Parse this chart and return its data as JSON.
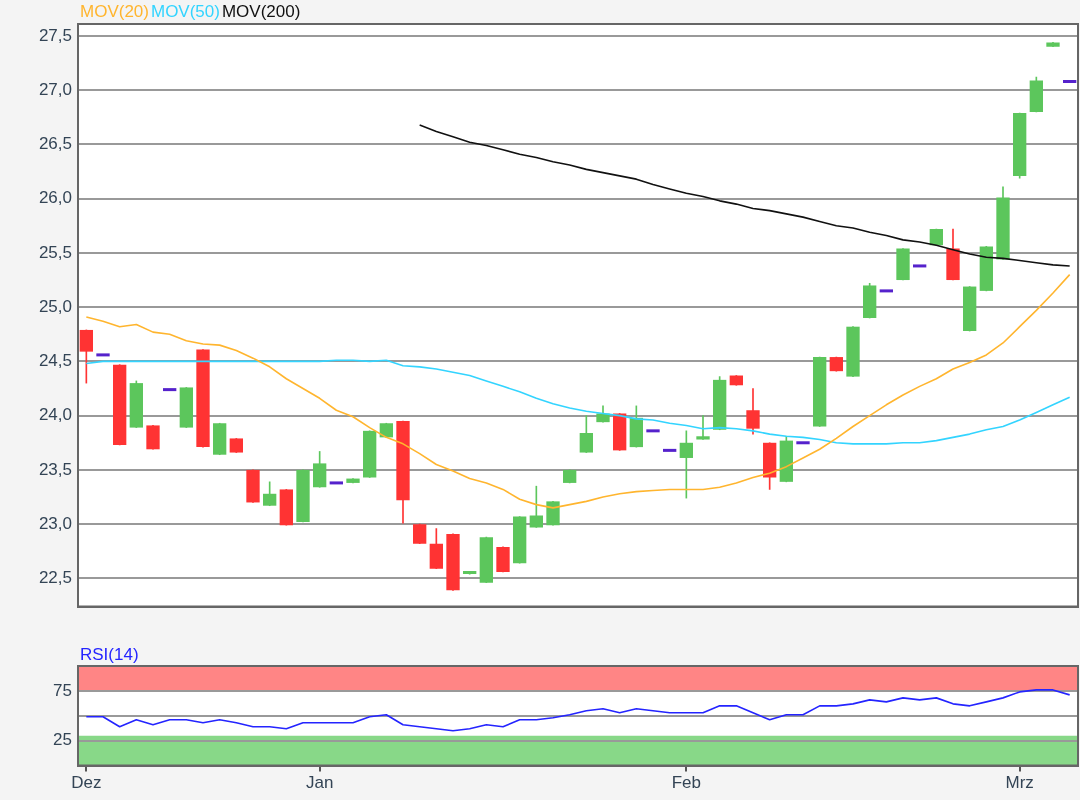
{
  "chart_data": [
    {
      "type": "candlestick",
      "categories": [
        null,
        null,
        null,
        null,
        null,
        null,
        null,
        null,
        null,
        null,
        null,
        null,
        null,
        null,
        null,
        null,
        null,
        null,
        null,
        null,
        null,
        null,
        null,
        null,
        null,
        null,
        null,
        null,
        null,
        null,
        null,
        null,
        null,
        null,
        null,
        null,
        null,
        null,
        null,
        null,
        null,
        null,
        null,
        null,
        null,
        null,
        null,
        null,
        null,
        null,
        null,
        null,
        null,
        null,
        null,
        null,
        null,
        null,
        null,
        null
      ],
      "ylim": [
        22.24,
        27.61
      ],
      "yticks": [
        {
          "value": 22.5,
          "label": "22,5"
        },
        {
          "value": 23,
          "label": "23,0"
        },
        {
          "value": 23.5,
          "label": "23,5"
        },
        {
          "value": 24,
          "label": "24,0"
        },
        {
          "value": 24.5,
          "label": "24,5"
        },
        {
          "value": 25,
          "label": "25,0"
        },
        {
          "value": 25.5,
          "label": "25,5"
        },
        {
          "value": 26,
          "label": "26,0"
        },
        {
          "value": 26.5,
          "label": "26,5"
        },
        {
          "value": 27,
          "label": "27,0"
        },
        {
          "value": 27.5,
          "label": "27,5"
        }
      ],
      "grid": "y",
      "legend": "top left",
      "marker": "none",
      "series": [
        {
          "type": "candlestick",
          "ohlc": [
            [
              24.79,
              24.79,
              24.3,
              24.59
            ],
            [
              24.56,
              24.56,
              24.56,
              24.56
            ],
            [
              24.47,
              24.47,
              23.73,
              23.73
            ],
            [
              23.89,
              24.32,
              23.89,
              24.3
            ],
            [
              23.91,
              23.91,
              23.69,
              23.69
            ],
            [
              24.24,
              24.24,
              24.24,
              24.24
            ],
            [
              23.89,
              24.26,
              23.89,
              24.26
            ],
            [
              24.61,
              24.61,
              23.71,
              23.71
            ],
            [
              23.64,
              23.93,
              23.64,
              23.93
            ],
            [
              23.79,
              23.79,
              23.66,
              23.66
            ],
            [
              23.5,
              23.5,
              23.2,
              23.2
            ],
            [
              23.17,
              23.39,
              23.17,
              23.28
            ],
            [
              23.32,
              23.32,
              22.99,
              22.99
            ],
            [
              23.02,
              23.5,
              23.02,
              23.5
            ],
            [
              23.34,
              23.67,
              23.34,
              23.56
            ],
            [
              23.38,
              23.38,
              23.38,
              23.38
            ],
            [
              23.38,
              23.42,
              23.38,
              23.42
            ],
            [
              23.43,
              23.86,
              23.43,
              23.86
            ],
            [
              23.8,
              23.93,
              23.8,
              23.93
            ],
            [
              23.95,
              23.95,
              23.01,
              23.22
            ],
            [
              23.0,
              23.0,
              22.82,
              22.82
            ],
            [
              22.82,
              22.96,
              22.59,
              22.59
            ],
            [
              22.91,
              22.91,
              22.39,
              22.39
            ],
            [
              22.54,
              22.56,
              22.54,
              22.56
            ],
            [
              22.46,
              22.88,
              22.46,
              22.88
            ],
            [
              22.79,
              22.79,
              22.56,
              22.56
            ],
            [
              22.64,
              23.07,
              22.64,
              23.07
            ],
            [
              22.97,
              23.35,
              22.97,
              23.08
            ],
            [
              22.99,
              23.21,
              22.99,
              23.21
            ],
            [
              23.38,
              23.5,
              23.38,
              23.5
            ],
            [
              23.66,
              24.0,
              23.66,
              23.84
            ],
            [
              23.94,
              24.09,
              23.94,
              24.02
            ],
            [
              24.02,
              24.02,
              23.68,
              23.68
            ],
            [
              23.71,
              24.09,
              23.71,
              23.98
            ],
            [
              23.86,
              23.86,
              23.86,
              23.86
            ],
            [
              23.68,
              23.68,
              23.68,
              23.68
            ],
            [
              23.61,
              23.86,
              23.24,
              23.75
            ],
            [
              23.78,
              24.0,
              23.78,
              23.81
            ],
            [
              23.87,
              24.36,
              23.87,
              24.33
            ],
            [
              24.37,
              24.37,
              24.28,
              24.28
            ],
            [
              24.05,
              24.25,
              23.83,
              23.88
            ],
            [
              23.75,
              23.75,
              23.32,
              23.43
            ],
            [
              23.39,
              23.81,
              23.39,
              23.77
            ],
            [
              23.75,
              23.75,
              23.75,
              23.75
            ],
            [
              23.9,
              24.54,
              23.9,
              24.54
            ],
            [
              24.54,
              24.54,
              24.41,
              24.41
            ],
            [
              24.36,
              24.82,
              24.36,
              24.82
            ],
            [
              24.9,
              25.22,
              24.9,
              25.2
            ],
            [
              25.15,
              25.15,
              25.15,
              25.15
            ],
            [
              25.25,
              25.54,
              25.25,
              25.54
            ],
            [
              25.38,
              25.38,
              25.38,
              25.38
            ],
            [
              25.57,
              25.72,
              25.57,
              25.72
            ],
            [
              25.54,
              25.72,
              25.25,
              25.25
            ],
            [
              24.78,
              25.19,
              24.78,
              25.19
            ],
            [
              25.15,
              25.56,
              25.15,
              25.56
            ],
            [
              25.44,
              26.11,
              25.44,
              26.01
            ],
            [
              26.21,
              26.79,
              26.19,
              26.79
            ],
            [
              26.8,
              27.12,
              26.8,
              27.09
            ],
            [
              27.4,
              27.44,
              27.4,
              27.44
            ],
            [
              27.08,
              27.08,
              27.08,
              27.08
            ]
          ],
          "colors": [
            "#ff3333",
            "#5522cc",
            "#ff3333",
            "#5cc65c",
            "#ff3333",
            "#5522cc",
            "#5cc65c",
            "#ff3333",
            "#5cc65c",
            "#ff3333",
            "#ff3333",
            "#5cc65c",
            "#ff3333",
            "#5cc65c",
            "#5cc65c",
            "#5522cc",
            "#5cc65c",
            "#5cc65c",
            "#5cc65c",
            "#ff3333",
            "#ff3333",
            "#ff3333",
            "#ff3333",
            "#5cc65c",
            "#5cc65c",
            "#ff3333",
            "#5cc65c",
            "#5cc65c",
            "#5cc65c",
            "#5cc65c",
            "#5cc65c",
            "#5cc65c",
            "#ff3333",
            "#5cc65c",
            "#5522cc",
            "#5522cc",
            "#5cc65c",
            "#5cc65c",
            "#5cc65c",
            "#ff3333",
            "#ff3333",
            "#ff3333",
            "#5cc65c",
            "#5522cc",
            "#5cc65c",
            "#ff3333",
            "#5cc65c",
            "#5cc65c",
            "#5522cc",
            "#5cc65c",
            "#5522cc",
            "#5cc65c",
            "#ff3333",
            "#5cc65c",
            "#5cc65c",
            "#5cc65c",
            "#5cc65c",
            "#5cc65c",
            "#5cc65c",
            "#5522cc"
          ]
        },
        {
          "type": "line",
          "name": "MOV(20)",
          "color": "#ffb52e",
          "values": [
            24.91,
            24.87,
            24.82,
            24.84,
            24.77,
            24.75,
            24.69,
            24.66,
            24.65,
            24.6,
            24.53,
            24.45,
            24.34,
            24.25,
            24.16,
            24.05,
            23.99,
            23.89,
            23.8,
            23.74,
            23.65,
            23.55,
            23.49,
            23.42,
            23.38,
            23.32,
            23.23,
            23.18,
            23.15,
            23.18,
            23.21,
            23.25,
            23.28,
            23.3,
            23.31,
            23.32,
            23.32,
            23.32,
            23.34,
            23.38,
            23.43,
            23.47,
            23.53,
            23.61,
            23.69,
            23.79,
            23.9,
            24.0,
            24.1,
            24.19,
            24.27,
            24.34,
            24.43,
            24.49,
            24.56,
            24.67,
            24.82,
            24.97,
            25.13,
            25.3
          ]
        },
        {
          "type": "line",
          "name": "MOV(50)",
          "color": "#33d4ff",
          "values": [
            24.48,
            24.5,
            24.5,
            24.5,
            24.5,
            24.5,
            24.5,
            24.5,
            24.5,
            24.5,
            24.5,
            24.5,
            24.5,
            24.5,
            24.5,
            24.51,
            24.51,
            24.5,
            24.51,
            24.46,
            24.45,
            24.43,
            24.4,
            24.37,
            24.32,
            24.27,
            24.22,
            24.16,
            24.11,
            24.07,
            24.04,
            24.02,
            24.0,
            23.97,
            23.96,
            23.93,
            23.91,
            23.88,
            23.89,
            23.88,
            23.86,
            23.83,
            23.81,
            23.8,
            23.78,
            23.75,
            23.74,
            23.74,
            23.74,
            23.75,
            23.75,
            23.77,
            23.8,
            23.83,
            23.87,
            23.9,
            23.96,
            24.03,
            24.1,
            24.17
          ]
        },
        {
          "type": "line",
          "name": "MOV(200)",
          "color": "#111111",
          "values": [
            null,
            null,
            null,
            null,
            null,
            null,
            null,
            null,
            null,
            null,
            null,
            null,
            null,
            null,
            null,
            null,
            null,
            null,
            null,
            null,
            26.68,
            26.62,
            26.57,
            26.52,
            26.49,
            26.45,
            26.41,
            26.38,
            26.34,
            26.31,
            26.27,
            26.24,
            26.21,
            26.18,
            26.13,
            26.09,
            26.05,
            26.02,
            25.98,
            25.95,
            25.91,
            25.89,
            25.86,
            25.83,
            25.79,
            25.75,
            25.73,
            25.69,
            25.66,
            25.62,
            25.6,
            25.57,
            25.53,
            25.49,
            25.46,
            25.45,
            25.43,
            25.41,
            25.39,
            25.38
          ]
        }
      ]
    },
    {
      "type": "line",
      "categories": [
        "Dez",
        null,
        null,
        null,
        null,
        null,
        null,
        null,
        null,
        null,
        null,
        null,
        null,
        null,
        "Jan",
        null,
        null,
        null,
        null,
        null,
        null,
        null,
        null,
        null,
        null,
        null,
        null,
        null,
        null,
        null,
        null,
        null,
        null,
        null,
        null,
        null,
        "Feb",
        null,
        null,
        null,
        null,
        null,
        null,
        null,
        null,
        null,
        null,
        null,
        null,
        null,
        null,
        null,
        null,
        null,
        null,
        null,
        "Mrz",
        null,
        null,
        null
      ],
      "ylim": [
        0,
        100
      ],
      "yticks": [
        25,
        {
          "value": 50,
          "label": null
        },
        75
      ],
      "grid": "y",
      "legend": "top left",
      "marker": "none",
      "bands": [
        {
          "axis": "y",
          "from": 75,
          "to": 100,
          "color": "#ff8585"
        },
        {
          "axis": "y",
          "from": 0,
          "to": 30,
          "color": "#88d888"
        }
      ],
      "series": [
        {
          "name": "RSI(14)",
          "color": "#2424ff",
          "values": [
            49,
            49,
            39,
            46,
            41,
            46,
            46,
            43,
            46,
            43,
            39,
            39,
            37,
            43,
            43,
            43,
            43,
            49,
            51,
            41,
            39,
            37,
            35,
            37,
            41,
            39,
            46,
            46,
            48,
            51,
            55,
            57,
            53,
            57,
            55,
            53,
            53,
            53,
            60,
            60,
            53,
            46,
            51,
            51,
            60,
            60,
            62,
            66,
            64,
            68,
            66,
            68,
            62,
            60,
            64,
            68,
            74,
            76,
            76,
            71
          ]
        }
      ]
    }
  ]
}
